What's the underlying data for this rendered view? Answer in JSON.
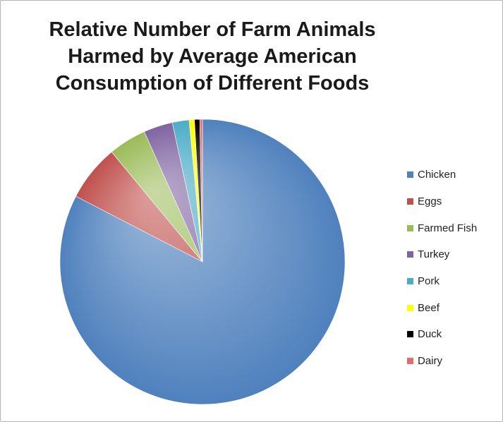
{
  "chart_data": {
    "type": "pie",
    "title_lines": [
      "Relative Number of Farm Animals",
      "Harmed by Average American",
      "Consumption of Different Foods"
    ],
    "legend_position": "right",
    "slices": [
      {
        "name": "Chicken",
        "value": 82.6,
        "color": "#4f81bd"
      },
      {
        "name": "Eggs",
        "value": 6.4,
        "color": "#c0504d"
      },
      {
        "name": "Farmed Fish",
        "value": 4.3,
        "color": "#9bbb59"
      },
      {
        "name": "Turkey",
        "value": 3.3,
        "color": "#8064a2"
      },
      {
        "name": "Pork",
        "value": 1.9,
        "color": "#4bacc6"
      },
      {
        "name": "Beef",
        "value": 0.6,
        "color": "#ffff00"
      },
      {
        "name": "Duck",
        "value": 0.6,
        "color": "#000000"
      },
      {
        "name": "Dairy",
        "value": 0.3,
        "color": "#e46c6c"
      }
    ]
  }
}
